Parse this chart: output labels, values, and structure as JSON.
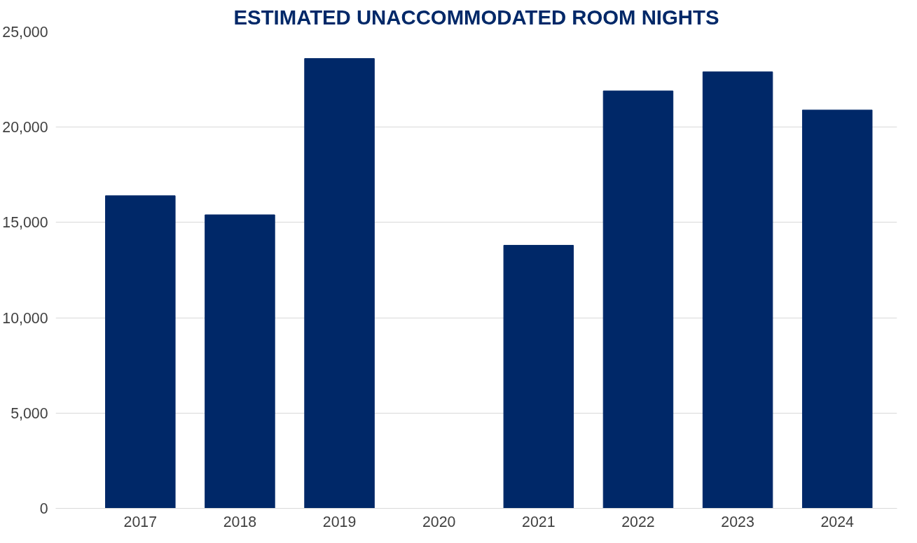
{
  "chart_data": {
    "type": "bar",
    "title": "ESTIMATED UNACCOMMODATED ROOM NIGHTS",
    "categories": [
      "2017",
      "2018",
      "2019",
      "2020",
      "2021",
      "2022",
      "2023",
      "2024"
    ],
    "values": [
      16400,
      15400,
      23600,
      null,
      13800,
      21900,
      22900,
      20900
    ],
    "color": "#002868",
    "ylim": [
      0,
      25000
    ],
    "yticks": [
      0,
      {
        "value": 5000,
        "label": "5,000"
      },
      {
        "value": 10000,
        "label": "10,000"
      },
      {
        "value": 15000,
        "label": "15,000"
      },
      {
        "value": 20000,
        "label": "20,000"
      },
      {
        "value": 25000,
        "label": "25,000"
      }
    ],
    "grid": "y"
  }
}
